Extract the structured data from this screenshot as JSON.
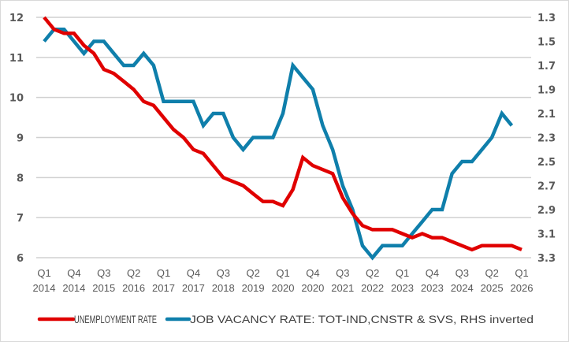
{
  "chart_data": {
    "type": "line",
    "title": "",
    "x_tick_labels": [
      {
        "q": "Q1",
        "y": "2014"
      },
      {
        "q": "Q4",
        "y": "2014"
      },
      {
        "q": "Q3",
        "y": "2015"
      },
      {
        "q": "Q2",
        "y": "2016"
      },
      {
        "q": "Q1",
        "y": "2017"
      },
      {
        "q": "Q4",
        "y": "2017"
      },
      {
        "q": "Q3",
        "y": "2018"
      },
      {
        "q": "Q2",
        "y": "2019"
      },
      {
        "q": "Q1",
        "y": "2020"
      },
      {
        "q": "Q4",
        "y": "2020"
      },
      {
        "q": "Q3",
        "y": "2021"
      },
      {
        "q": "Q2",
        "y": "2022"
      },
      {
        "q": "Q1",
        "y": "2023"
      },
      {
        "q": "Q4",
        "y": "2023"
      },
      {
        "q": "Q3",
        "y": "2024"
      },
      {
        "q": "Q2",
        "y": "2025"
      },
      {
        "q": "Q1",
        "y": "2026"
      }
    ],
    "x_start": "Q1 2014",
    "x_end": "Q1 2026",
    "x_tick_every_quarters": 3,
    "y_left": {
      "ylim": [
        6,
        12
      ],
      "ticks": [
        "12",
        "11",
        "10",
        "9",
        "8",
        "7",
        "6"
      ],
      "gridlines": true
    },
    "y_right": {
      "ylim": [
        1.3,
        3.3
      ],
      "inverted": true,
      "ticks": [
        "1.3",
        "1.5",
        "1.7",
        "1.9",
        "2.1",
        "2.3",
        "2.5",
        "2.7",
        "2.9",
        "3.1",
        "3.3"
      ]
    },
    "legend_position": "bottom",
    "series": [
      {
        "name": "UNEMPLOYMENT RATE",
        "axis": "left",
        "color": "#e00000",
        "values": [
          12.0,
          11.7,
          11.6,
          11.6,
          11.3,
          11.1,
          10.7,
          10.6,
          10.4,
          10.2,
          9.9,
          9.8,
          9.5,
          9.2,
          9.0,
          8.7,
          8.6,
          8.3,
          8.0,
          7.9,
          7.8,
          7.6,
          7.4,
          7.4,
          7.3,
          7.7,
          8.5,
          8.3,
          8.2,
          8.1,
          7.5,
          7.1,
          6.8,
          6.7,
          6.7,
          6.7,
          6.6,
          6.5,
          6.6,
          6.5,
          6.5,
          6.4,
          6.3,
          6.2,
          6.3,
          6.3,
          6.3,
          6.3,
          6.2
        ]
      },
      {
        "name": "JOB VACANCY RATE: TOT-IND,CNSTR & SVS, RHS inverted",
        "axis": "right",
        "color": "#0f7fab",
        "values": [
          1.5,
          1.4,
          1.4,
          1.5,
          1.6,
          1.5,
          1.5,
          1.6,
          1.7,
          1.7,
          1.6,
          1.7,
          2.0,
          2.0,
          2.0,
          2.0,
          2.2,
          2.1,
          2.1,
          2.3,
          2.4,
          2.3,
          2.3,
          2.3,
          2.1,
          1.7,
          1.8,
          1.9,
          2.2,
          2.4,
          2.7,
          2.9,
          3.2,
          3.3,
          3.2,
          3.2,
          3.2,
          3.1,
          3.0,
          2.9,
          2.9,
          2.6,
          2.5,
          2.5,
          2.4,
          2.3,
          2.1,
          2.2
        ]
      }
    ]
  }
}
